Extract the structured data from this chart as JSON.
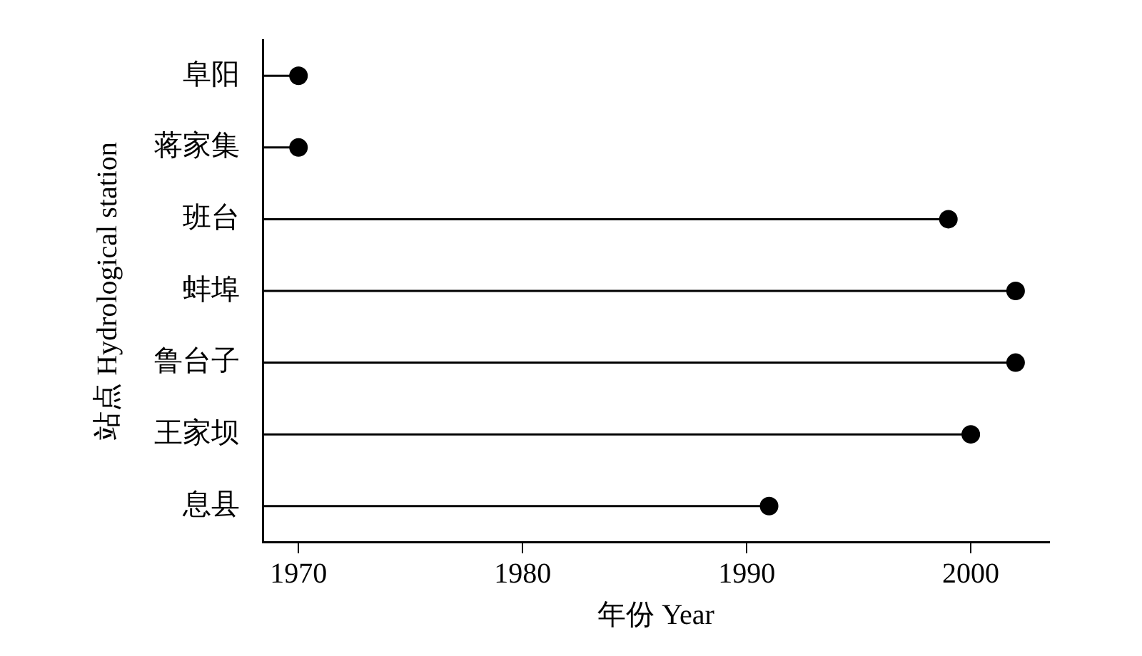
{
  "chart_data": {
    "type": "lollipop",
    "orientation": "horizontal",
    "xlabel": "年份 Year",
    "ylabel": "站点 Hydrological station",
    "categories": [
      "阜阳",
      "蒋家集",
      "班台",
      "蚌埠",
      "鲁台子",
      "王家坝",
      "息县"
    ],
    "values": [
      1970,
      1970,
      1999,
      2002,
      2002,
      2000,
      1991
    ],
    "color": "#000000",
    "xlim": [
      1968.4,
      2003.5
    ],
    "xticks": [
      1970,
      1980,
      1990,
      2000
    ],
    "grid": false,
    "legend": false,
    "marker": "circle"
  }
}
